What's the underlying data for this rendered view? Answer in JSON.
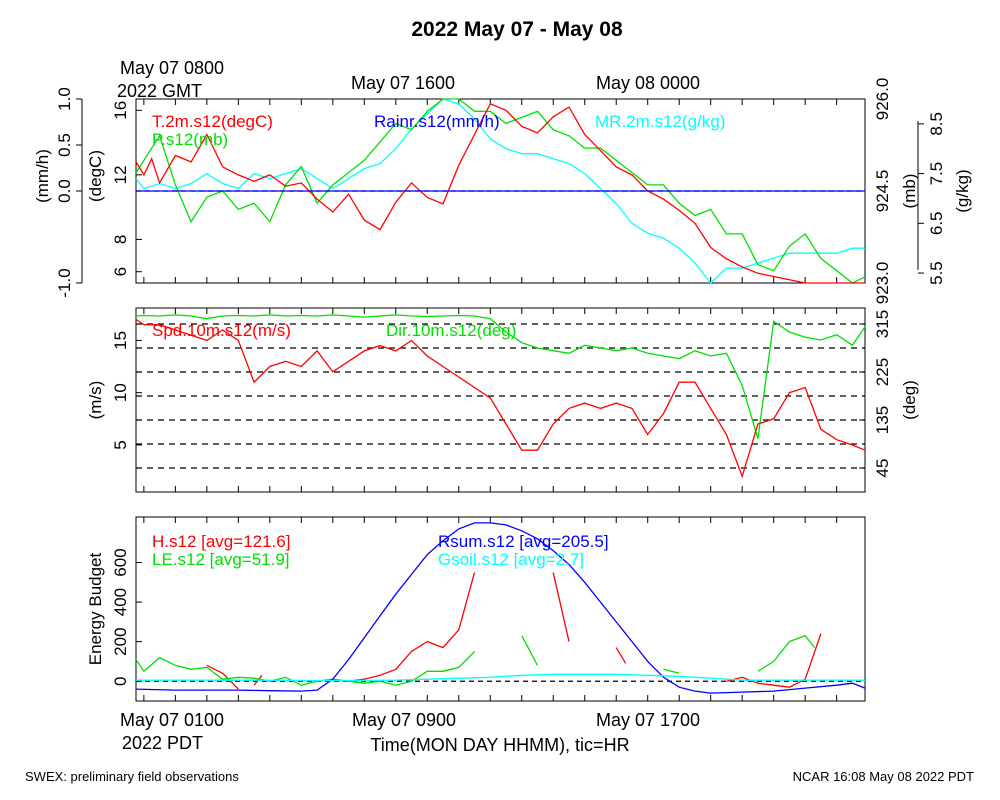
{
  "title": "2022 May 07 - May 08",
  "footer": {
    "left": "SWEX: preliminary field observations",
    "right": "NCAR 16:08 May 08 2022 PDT"
  },
  "top_time_labels": {
    "first_line1": "May 07 0800",
    "first_line2": "2022 GMT",
    "second": "May 07 1600",
    "third": "May 08 0000"
  },
  "bottom_time_labels": {
    "first": "May 07 0100",
    "first_line2": "2022 PDT",
    "second": "May 07 0900",
    "third": "May 07 1700"
  },
  "xlabel": "Time(MON DAY HHMM), tic=HR",
  "colors": {
    "red": "#ff0000",
    "green": "#00e000",
    "blue": "#0000ff",
    "cyan": "#00ffff",
    "black": "#000000"
  },
  "chart_data": [
    {
      "type": "line",
      "panel": "met",
      "x_unit": "hours since May 07 0000 PDT",
      "xlim": [
        0.75,
        23.9
      ],
      "y_axes": {
        "rain": {
          "label": "(mm/h)",
          "ylim": [
            -1.0,
            1.0
          ],
          "ticks": [
            "1.0",
            "0.5",
            "0.0",
            "-1.0"
          ],
          "tick_values": [
            1.0,
            0.5,
            0.0,
            -1.0
          ]
        },
        "temp": {
          "label": "(degC)",
          "ylim": [
            5.3,
            16.7
          ],
          "ticks": [
            "16",
            "12",
            "8",
            "6"
          ],
          "tick_values": [
            16,
            12,
            8,
            6
          ]
        },
        "pres": {
          "label": "(mb)",
          "ylim": [
            923.0,
            926.0
          ],
          "ticks": [
            "926.0",
            "924.5",
            "923.0"
          ],
          "tick_values": [
            926.0,
            924.5,
            923.0
          ]
        },
        "mr": {
          "label": "(g/kg)",
          "ylim": [
            5.3,
            9.0
          ],
          "ticks": [
            "8.5",
            "7.5",
            "6.5",
            "5.5"
          ],
          "tick_values": [
            8.5,
            7.5,
            6.5,
            5.5
          ]
        }
      },
      "series": [
        {
          "name": "T.2m.s12(degC)",
          "axis": "temp",
          "color": "#ff0000",
          "x": [
            0.75,
            1.0,
            1.25,
            1.5,
            2.0,
            2.5,
            3.0,
            3.5,
            4.0,
            4.5,
            5.0,
            5.5,
            6.0,
            6.5,
            7.0,
            7.5,
            8.0,
            8.5,
            9.0,
            9.5,
            10.0,
            10.5,
            11.0,
            11.5,
            12.0,
            12.5,
            13.0,
            13.5,
            14.0,
            14.5,
            15.0,
            15.5,
            16.0,
            16.5,
            17.0,
            17.5,
            18.0,
            18.5,
            19.0,
            19.5,
            20.0,
            20.5,
            21.0,
            21.5,
            22.0,
            22.5,
            23.0,
            23.5,
            23.9
          ],
          "y": [
            12.8,
            12.0,
            13.0,
            11.5,
            13.2,
            12.8,
            14.5,
            12.5,
            12.0,
            11.6,
            12.0,
            11.3,
            11.5,
            10.5,
            9.7,
            10.8,
            9.2,
            8.6,
            10.3,
            11.5,
            10.6,
            10.2,
            12.6,
            14.5,
            16.4,
            16.0,
            15.0,
            14.6,
            15.6,
            16.2,
            14.5,
            13.5,
            12.5,
            12.0,
            11.0,
            10.5,
            9.8,
            9.0,
            7.5,
            6.8,
            6.3,
            5.9,
            5.7,
            5.5,
            5.3,
            5.3,
            5.3,
            5.3,
            5.3
          ]
        },
        {
          "name": "P.s12(mb)",
          "axis": "pres",
          "color": "#00e000",
          "x": [
            0.75,
            1.0,
            1.5,
            2.0,
            2.5,
            3.0,
            3.5,
            4.0,
            4.5,
            5.0,
            5.5,
            6.0,
            6.5,
            7.0,
            7.5,
            8.0,
            8.5,
            9.0,
            9.5,
            10.0,
            10.5,
            11.0,
            11.5,
            12.0,
            12.5,
            13.0,
            13.5,
            14.0,
            14.5,
            15.0,
            15.5,
            16.0,
            16.5,
            17.0,
            17.5,
            18.0,
            18.5,
            19.0,
            19.5,
            20.0,
            20.5,
            21.0,
            21.5,
            22.0,
            22.5,
            23.0,
            23.5,
            23.9
          ],
          "y": [
            924.8,
            925.0,
            925.4,
            924.6,
            924.0,
            924.4,
            924.5,
            924.2,
            924.3,
            924.0,
            924.6,
            924.9,
            924.3,
            924.6,
            924.8,
            925.0,
            925.3,
            925.6,
            925.5,
            925.8,
            926.0,
            926.0,
            925.8,
            925.8,
            925.6,
            925.7,
            925.8,
            925.5,
            925.4,
            925.2,
            925.2,
            925.0,
            924.8,
            924.6,
            924.6,
            924.3,
            924.1,
            924.2,
            923.8,
            923.8,
            923.3,
            923.2,
            923.6,
            923.8,
            923.4,
            923.2,
            923.0,
            923.1
          ]
        },
        {
          "name": "MR.2m.s12(g/kg)",
          "axis": "mr",
          "color": "#00ffff",
          "x": [
            0.75,
            1.0,
            1.5,
            2.0,
            2.5,
            3.0,
            3.5,
            4.0,
            4.5,
            5.0,
            5.5,
            6.0,
            6.5,
            7.0,
            7.5,
            8.0,
            8.5,
            9.0,
            9.5,
            10.0,
            10.5,
            11.0,
            11.5,
            12.0,
            12.5,
            13.0,
            13.5,
            14.0,
            14.5,
            15.0,
            15.5,
            16.0,
            16.5,
            17.0,
            17.5,
            18.0,
            18.5,
            19.0,
            19.5,
            20.0,
            20.5,
            21.0,
            21.5,
            22.0,
            22.5,
            23.0,
            23.5,
            23.9
          ],
          "y": [
            7.4,
            7.2,
            7.3,
            7.2,
            7.3,
            7.5,
            7.3,
            7.2,
            7.5,
            7.4,
            7.5,
            7.6,
            7.4,
            7.2,
            7.4,
            7.6,
            7.7,
            8.0,
            8.4,
            8.7,
            9.0,
            8.9,
            8.6,
            8.2,
            8.0,
            7.9,
            7.9,
            7.8,
            7.7,
            7.5,
            7.2,
            6.9,
            6.5,
            6.3,
            6.2,
            6.0,
            5.7,
            5.3,
            5.6,
            5.6,
            5.7,
            5.8,
            5.9,
            5.9,
            5.9,
            5.9,
            6.0,
            6.0
          ]
        },
        {
          "name": "Rainr.s12(mm/h)",
          "axis": "rain",
          "color": "#0000ff",
          "x": [
            0.75,
            23.9
          ],
          "y": [
            0.0,
            0.0
          ]
        }
      ]
    },
    {
      "type": "line",
      "panel": "wind",
      "x_unit": "hours since May 07 0000 PDT",
      "xlim": [
        0.75,
        23.9
      ],
      "y_axes": {
        "spd": {
          "label": "(m/s)",
          "ylim": [
            0.5,
            18.1
          ],
          "ticks": [
            "15",
            "10",
            "5"
          ],
          "tick_values": [
            15,
            10,
            5
          ]
        },
        "dir": {
          "label": "(deg)",
          "ylim": [
            0,
            345
          ],
          "ticks": [
            "315",
            "225",
            "135",
            "45"
          ],
          "tick_values": [
            315,
            225,
            135,
            45
          ]
        }
      },
      "dashed_levels_deg": [
        0,
        45,
        90,
        135,
        180,
        225,
        270,
        315
      ],
      "series": [
        {
          "name": "Spd.10m.s12(m/s)",
          "axis": "spd",
          "color": "#ff0000",
          "x": [
            0.75,
            1.0,
            1.5,
            2.0,
            2.5,
            3.0,
            3.5,
            4.0,
            4.5,
            5.0,
            5.5,
            6.0,
            6.5,
            7.0,
            7.5,
            8.0,
            8.5,
            9.0,
            9.5,
            10.0,
            10.5,
            11.0,
            11.5,
            12.0,
            12.5,
            13.0,
            13.5,
            14.0,
            14.5,
            15.0,
            15.5,
            16.0,
            16.5,
            17.0,
            17.5,
            18.0,
            18.5,
            19.0,
            19.5,
            20.0,
            20.5,
            21.0,
            21.5,
            22.0,
            22.5,
            23.0,
            23.5,
            23.9
          ],
          "y": [
            17.0,
            16.5,
            16.5,
            16.0,
            15.5,
            15.0,
            16.0,
            15.0,
            11.0,
            12.5,
            13.0,
            12.5,
            14.0,
            12.0,
            13.0,
            14.0,
            14.5,
            14.0,
            15.0,
            13.5,
            12.5,
            11.5,
            10.5,
            9.5,
            7.0,
            4.5,
            4.5,
            7.0,
            8.5,
            9.0,
            8.5,
            9.0,
            8.5,
            6.0,
            8.0,
            11.0,
            11.0,
            8.5,
            6.0,
            2.0,
            7.0,
            7.5,
            10.0,
            10.5,
            6.5,
            5.5,
            5.0,
            4.5
          ]
        },
        {
          "name": "Dir.10m.s12(deg)",
          "axis": "dir",
          "color": "#00e000",
          "x": [
            0.75,
            1.0,
            1.5,
            2.0,
            2.5,
            3.0,
            3.5,
            4.0,
            4.5,
            5.0,
            5.5,
            6.0,
            6.5,
            7.0,
            7.5,
            8.0,
            8.5,
            9.0,
            9.5,
            10.0,
            10.5,
            11.0,
            11.5,
            12.0,
            12.5,
            13.0,
            13.5,
            14.0,
            14.5,
            15.0,
            15.5,
            16.0,
            16.5,
            17.0,
            17.5,
            18.0,
            18.5,
            19.0,
            19.5,
            20.0,
            20.5,
            21.0,
            21.5,
            22.0,
            22.5,
            23.0,
            23.5,
            23.9
          ],
          "y": [
            330,
            331,
            330,
            332,
            330,
            325,
            330,
            331,
            330,
            332,
            330,
            331,
            330,
            332,
            330,
            328,
            330,
            332,
            330,
            329,
            330,
            331,
            330,
            325,
            300,
            280,
            270,
            265,
            260,
            275,
            270,
            265,
            270,
            260,
            255,
            250,
            265,
            255,
            260,
            200,
            100,
            320,
            300,
            290,
            285,
            295,
            275,
            310
          ]
        }
      ]
    },
    {
      "type": "line",
      "panel": "energy",
      "x_unit": "hours since May 07 0000 PDT",
      "xlim": [
        0.75,
        23.9
      ],
      "ylabel": "Energy Budget",
      "ylim": [
        -100,
        830
      ],
      "ticks": [
        "600",
        "400",
        "200",
        "0"
      ],
      "tick_values": [
        600,
        400,
        200,
        0
      ],
      "series": [
        {
          "name": "H.s12 [avg=121.6]",
          "color": "#ff0000",
          "segments": [
            {
              "x": [
                3.0,
                3.5,
                4.0
              ],
              "y": [
                80,
                40,
                -40
              ]
            },
            {
              "x": [
                4.5,
                4.75
              ],
              "y": [
                -20,
                30
              ]
            },
            {
              "x": [
                7.5,
                8.0,
                8.5,
                9.0,
                9.5,
                10.0,
                10.5,
                11.0,
                11.5
              ],
              "y": [
                0,
                10,
                30,
                60,
                150,
                200,
                170,
                260,
                550
              ]
            },
            {
              "x": [
                14.0,
                14.5
              ],
              "y": [
                550,
                200
              ]
            },
            {
              "x": [
                16.0,
                16.3
              ],
              "y": [
                170,
                90
              ]
            },
            {
              "x": [
                19.5,
                20.0,
                20.5,
                21.0,
                21.5,
                22.0,
                22.5
              ],
              "y": [
                0,
                20,
                -10,
                -20,
                -30,
                10,
                240
              ]
            }
          ]
        },
        {
          "name": "LE.s12 [avg=51.9]",
          "color": "#00e000",
          "segments": [
            {
              "x": [
                0.75,
                1.0,
                1.5,
                2.0,
                2.5,
                3.0,
                3.5,
                4.0,
                4.5,
                5.0,
                5.5,
                6.0,
                6.5,
                7.0,
                7.5,
                8.0,
                8.5,
                9.0,
                9.5,
                10.0,
                10.5,
                11.0,
                11.5
              ],
              "y": [
                110,
                50,
                120,
                80,
                60,
                70,
                10,
                20,
                15,
                0,
                20,
                -20,
                0,
                10,
                0,
                -10,
                0,
                -20,
                0,
                50,
                50,
                70,
                150
              ]
            },
            {
              "x": [
                13.0,
                13.5
              ],
              "y": [
                230,
                80
              ]
            },
            {
              "x": [
                17.5,
                18.0
              ],
              "y": [
                60,
                40
              ]
            },
            {
              "x": [
                20.5,
                21.0,
                21.5,
                22.0,
                22.3
              ],
              "y": [
                50,
                100,
                200,
                230,
                170
              ]
            }
          ]
        },
        {
          "name": "Rsum.s12 [avg=205.5]",
          "color": "#0000ff",
          "x": [
            0.75,
            2.0,
            3.0,
            4.0,
            5.0,
            6.0,
            6.5,
            7.0,
            7.5,
            8.0,
            8.5,
            9.0,
            9.5,
            10.0,
            10.5,
            11.0,
            11.5,
            12.0,
            12.5,
            13.0,
            13.5,
            14.0,
            14.5,
            15.0,
            15.5,
            16.0,
            16.5,
            17.0,
            17.5,
            18.0,
            18.5,
            19.0,
            20.0,
            21.0,
            22.0,
            23.0,
            23.5,
            23.9
          ],
          "y": [
            -40,
            -45,
            -45,
            -45,
            -48,
            -50,
            -45,
            10,
            110,
            220,
            330,
            440,
            540,
            640,
            710,
            770,
            800,
            800,
            790,
            760,
            720,
            660,
            590,
            500,
            400,
            300,
            200,
            100,
            20,
            -30,
            -50,
            -60,
            -55,
            -50,
            -35,
            -20,
            -10,
            -35
          ]
        },
        {
          "name": "Gsoil.s12 [avg=2.7]",
          "color": "#00ffff",
          "x": [
            0.75,
            4.0,
            7.0,
            9.0,
            10.0,
            11.0,
            12.0,
            13.0,
            14.0,
            15.0,
            16.0,
            17.0,
            18.0,
            19.0,
            20.0,
            21.0,
            22.0,
            23.9
          ],
          "y": [
            5,
            5,
            3,
            5,
            10,
            15,
            20,
            30,
            35,
            35,
            35,
            30,
            25,
            15,
            5,
            5,
            5,
            5
          ]
        }
      ]
    }
  ]
}
